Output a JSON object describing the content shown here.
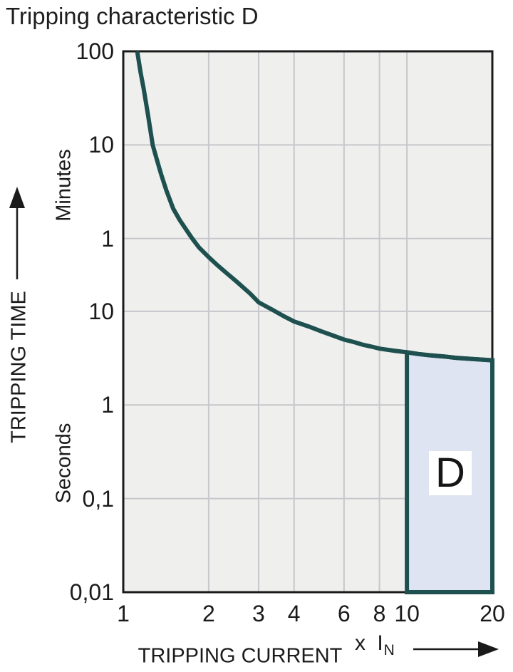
{
  "title": "Tripping characteristic D",
  "y_axis": {
    "title": "TRIPPING TIME",
    "unit_top": "Minutes",
    "unit_bottom": "Seconds"
  },
  "x_axis": {
    "title": "TRIPPING CURRENT",
    "unit_prefix": "x I",
    "unit_sub": "N"
  },
  "colors": {
    "curve": "#1d504e",
    "region_fill": "#dee4f1",
    "grid": "#c7c7cc",
    "plot_bg": "#efefee",
    "border": "#1a1a1a",
    "text": "#1b1b1b"
  },
  "chart_data": {
    "type": "line",
    "title": "Tripping characteristic D",
    "xlabel": "TRIPPING CURRENT (x IN)",
    "ylabel": "TRIPPING TIME",
    "x_scale": "log",
    "y_scale": "log",
    "grid": true,
    "xlim": [
      1,
      20
    ],
    "ylim": [
      0.01,
      6000
    ],
    "y_unit_note": "y values in seconds; axis labeled 100/10/1 Minutes then 10/1/0,1/0,01 Seconds",
    "x_ticks": [
      {
        "v": 1,
        "label": "1",
        "grid": false
      },
      {
        "v": 2,
        "label": "2",
        "grid": true
      },
      {
        "v": 3,
        "label": "3",
        "grid": true
      },
      {
        "v": 4,
        "label": "4",
        "grid": true
      },
      {
        "v": 6,
        "label": "6",
        "grid": true
      },
      {
        "v": 8,
        "label": "8",
        "grid": true
      },
      {
        "v": 10,
        "label": "10",
        "grid": true
      },
      {
        "v": 20,
        "label": "20",
        "grid": false
      }
    ],
    "y_ticks": [
      {
        "t": 6000,
        "label": "100",
        "unit": "minutes",
        "grid": false
      },
      {
        "t": 600,
        "label": "10",
        "unit": "minutes",
        "grid": true
      },
      {
        "t": 60,
        "label": "1",
        "unit": "minutes",
        "grid": true
      },
      {
        "t": 10,
        "label": "10",
        "unit": "seconds",
        "grid": true
      },
      {
        "t": 1,
        "label": "1",
        "unit": "seconds",
        "grid": true
      },
      {
        "t": 0.1,
        "label": "0,1",
        "unit": "seconds",
        "grid": true
      },
      {
        "t": 0.01,
        "label": "0,01",
        "unit": "seconds",
        "grid": false
      }
    ],
    "series": [
      {
        "name": "tripping-time-curve",
        "color": "#1d504e",
        "points": [
          [
            1.12,
            6000
          ],
          [
            1.15,
            3600
          ],
          [
            1.18,
            2400
          ],
          [
            1.22,
            1300
          ],
          [
            1.27,
            600
          ],
          [
            1.31,
            430
          ],
          [
            1.36,
            290
          ],
          [
            1.42,
            195
          ],
          [
            1.5,
            125
          ],
          [
            1.58,
            95
          ],
          [
            1.68,
            72
          ],
          [
            1.75,
            60
          ],
          [
            1.85,
            48
          ],
          [
            2.0,
            38
          ],
          [
            2.15,
            31
          ],
          [
            2.3,
            26
          ],
          [
            2.5,
            21
          ],
          [
            2.8,
            15.5
          ],
          [
            3.0,
            12.5
          ],
          [
            3.3,
            10.7
          ],
          [
            3.7,
            8.8
          ],
          [
            4.0,
            7.8
          ],
          [
            4.5,
            6.9
          ],
          [
            5.0,
            6.1
          ],
          [
            5.5,
            5.5
          ],
          [
            6.0,
            5.0
          ],
          [
            6.5,
            4.7
          ],
          [
            7.0,
            4.4
          ],
          [
            7.5,
            4.2
          ],
          [
            8.0,
            4.0
          ],
          [
            9.0,
            3.8
          ],
          [
            10.0,
            3.65
          ],
          [
            11.0,
            3.5
          ],
          [
            12.0,
            3.4
          ],
          [
            13.5,
            3.3
          ],
          [
            15.0,
            3.18
          ],
          [
            17.0,
            3.1
          ],
          [
            20.0,
            3.0
          ]
        ]
      }
    ],
    "region": {
      "label": "D",
      "x_from": 10,
      "x_to": 20,
      "bottom_seconds": 0.01,
      "top": "follows curve (~3.7 s at 10x In to ~3.0 s at 20x In)",
      "fill": "#dee4f1",
      "border": "#1d504e"
    }
  }
}
